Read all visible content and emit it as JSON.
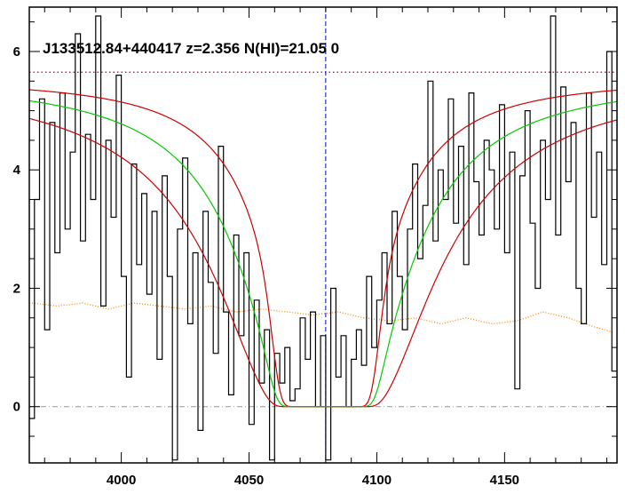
{
  "chart_data": {
    "type": "line",
    "title": "J133512.84+440417 z=2.356 N(HI)=21.05 0",
    "xlabel": "",
    "ylabel": "",
    "xlim": [
      3964,
      4194
    ],
    "ylim": [
      -0.95,
      6.75
    ],
    "x_ticks": [
      4000,
      4050,
      4100,
      4150
    ],
    "x_tick_labels": [
      "4000",
      "4050",
      "4100",
      "4150"
    ],
    "y_ticks": [
      0,
      2,
      4,
      6
    ],
    "y_tick_labels": [
      "0",
      "2",
      "4",
      "6"
    ],
    "continuum_level": 5.65,
    "line_center": 4080,
    "zero_level": 0,
    "colors": {
      "flux": "#000000",
      "fit": "#00cc00",
      "fit_bounds": "#cc0000",
      "continuum": "#aa0044",
      "center_line": "#0000cc",
      "zero_line": "#999999",
      "error": "#ff8800"
    },
    "series": [
      {
        "key": "flux",
        "style": "step",
        "x": [
          3965,
          3967,
          3969,
          3971,
          3973,
          3975,
          3977,
          3979,
          3981,
          3983,
          3985,
          3987,
          3989,
          3991,
          3993,
          3995,
          3997,
          3999,
          4001,
          4003,
          4005,
          4007,
          4009,
          4011,
          4013,
          4015,
          4017,
          4019,
          4021,
          4023,
          4025,
          4027,
          4029,
          4031,
          4033,
          4035,
          4037,
          4039,
          4041,
          4043,
          4045,
          4047,
          4049,
          4051,
          4053,
          4055,
          4057,
          4059,
          4061,
          4063,
          4065,
          4067,
          4069,
          4071,
          4073,
          4075,
          4077,
          4079,
          4081,
          4083,
          4085,
          4087,
          4089,
          4091,
          4093,
          4095,
          4097,
          4099,
          4101,
          4103,
          4105,
          4107,
          4109,
          4111,
          4113,
          4115,
          4117,
          4119,
          4121,
          4123,
          4125,
          4127,
          4129,
          4131,
          4133,
          4135,
          4137,
          4139,
          4141,
          4143,
          4145,
          4147,
          4149,
          4151,
          4153,
          4155,
          4157,
          4159,
          4161,
          4163,
          4165,
          4167,
          4169,
          4171,
          4173,
          4175,
          4177,
          4179,
          4181,
          4183,
          4185,
          4187,
          4189,
          4191,
          4193
        ],
        "y": [
          -0.2,
          3.5,
          5.2,
          1.3,
          4.8,
          2.6,
          5.3,
          3.0,
          4.3,
          6.3,
          2.8,
          4.6,
          3.5,
          6.6,
          1.7,
          4.5,
          3.2,
          5.6,
          2.2,
          0.5,
          4.1,
          2.4,
          3.6,
          1.9,
          3.3,
          0.8,
          3.9,
          2.2,
          -0.9,
          3.0,
          4.2,
          1.4,
          2.6,
          -0.4,
          3.3,
          2.1,
          0.9,
          4.4,
          1.6,
          0.2,
          2.9,
          1.2,
          2.6,
          -0.3,
          1.8,
          0.4,
          1.3,
          -0.9,
          0.9,
          0.4,
          1.0,
          0.1,
          0.3,
          1.5,
          0.8,
          1.6,
          0.0,
          1.2,
          -0.9,
          2.0,
          0.5,
          1.2,
          0.0,
          0.8,
          1.3,
          0.7,
          2.2,
          1.0,
          1.8,
          2.6,
          1.4,
          3.3,
          2.2,
          1.3,
          3.0,
          4.1,
          2.5,
          3.4,
          5.5,
          2.8,
          4.0,
          3.5,
          5.2,
          3.1,
          4.4,
          2.4,
          5.3,
          3.8,
          2.9,
          4.5,
          4.0,
          3.0,
          5.1,
          2.6,
          4.3,
          0.3,
          3.9,
          5.0,
          3.1,
          2.0,
          4.5,
          3.5,
          6.6,
          2.9,
          5.4,
          3.8,
          4.8,
          2.0,
          1.4,
          5.3,
          3.2,
          4.3,
          2.4,
          6.0,
          0.6
        ]
      },
      {
        "key": "error",
        "style": "dotted",
        "x": [
          3965,
          3975,
          3985,
          3995,
          4005,
          4015,
          4025,
          4035,
          4045,
          4055,
          4065,
          4075,
          4085,
          4095,
          4105,
          4115,
          4125,
          4135,
          4145,
          4155,
          4165,
          4175,
          4185,
          4193
        ],
        "y": [
          1.75,
          1.7,
          1.75,
          1.65,
          1.75,
          1.7,
          1.65,
          1.7,
          1.6,
          1.65,
          1.6,
          1.55,
          1.6,
          1.5,
          1.45,
          1.5,
          1.4,
          1.5,
          1.4,
          1.45,
          1.6,
          1.5,
          1.35,
          1.25
        ]
      }
    ]
  }
}
